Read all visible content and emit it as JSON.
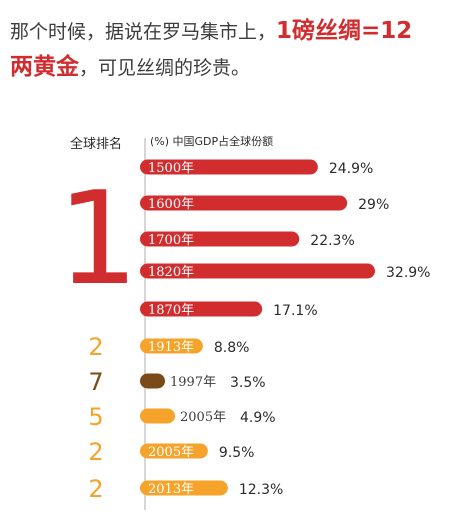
{
  "headline": {
    "line1_dark": "那个时候，据说在罗马集市上，",
    "line1_red": "1磅丝绸=12",
    "line2_red": "两黄金",
    "line2_dark": "，可见丝绸的珍贵。"
  },
  "colors": {
    "red": "#d12d2f",
    "orange": "#f5a32a",
    "brown": "#7a4a18",
    "axis": "#c8c8c8",
    "text": "#2c2c2c"
  },
  "chart_data": {
    "type": "bar",
    "orientation": "horizontal",
    "rank_header": "全球排名",
    "value_header": "(%) 中国GDP占全球份额",
    "shared_rank": "1",
    "xlim": [
      0,
      32.9
    ],
    "bars": [
      {
        "year": "1500年",
        "value": 24.9,
        "label": "24.9%",
        "rank": "1",
        "color": "red"
      },
      {
        "year": "1600年",
        "value": 29,
        "label": "29%",
        "rank": "1",
        "color": "red"
      },
      {
        "year": "1700年",
        "value": 22.3,
        "label": "22.3%",
        "rank": "1",
        "color": "red"
      },
      {
        "year": "1820年",
        "value": 32.9,
        "label": "32.9%",
        "rank": "1",
        "color": "red"
      },
      {
        "year": "1870年",
        "value": 17.1,
        "label": "17.1%",
        "rank": "1",
        "color": "red"
      },
      {
        "year": "1913年",
        "value": 8.8,
        "label": "8.8%",
        "rank": "2",
        "color": "orange"
      },
      {
        "year": "1997年",
        "value": 3.5,
        "label": "3.5%",
        "rank": "7",
        "color": "brown"
      },
      {
        "year": "2005年",
        "value": 4.9,
        "label": "4.9%",
        "rank": "5",
        "color": "orange"
      },
      {
        "year": "2005年",
        "value": 9.5,
        "label": "9.5%",
        "rank": "2",
        "color": "orange"
      },
      {
        "year": "2013年",
        "value": 12.3,
        "label": "12.3%",
        "rank": "2",
        "color": "orange"
      }
    ]
  }
}
